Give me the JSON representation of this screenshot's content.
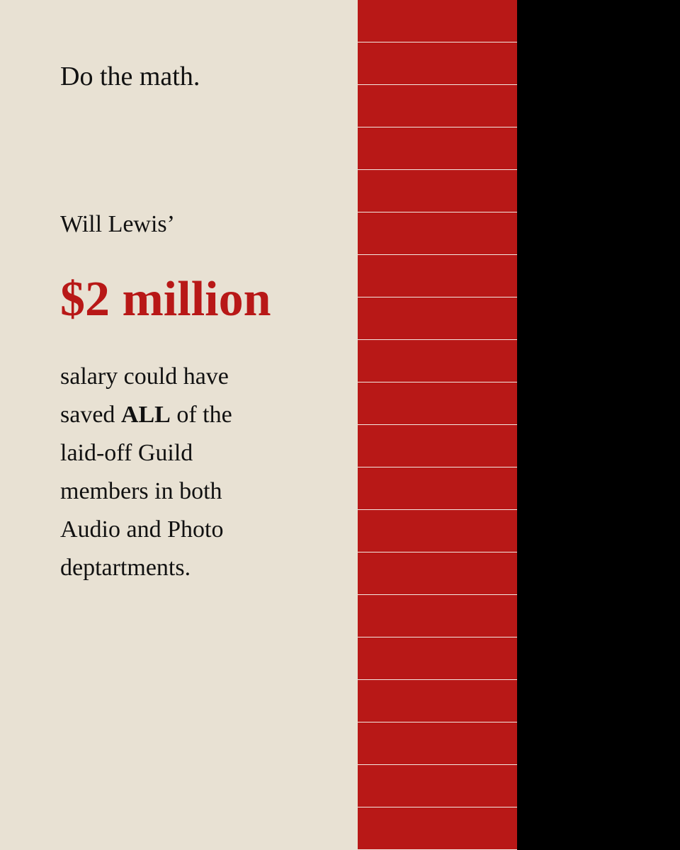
{
  "heading": "Do the math.",
  "lead": "Will Lewis’",
  "amount": "$2 million",
  "body": {
    "line1": "salary could have",
    "line2": {
      "before": "saved",
      "bold": "ALL",
      "after": "of the"
    },
    "line3": "laid-off Guild",
    "line4": "members in both",
    "line5": "Audio and Photo",
    "line6": "deptartments."
  }
}
